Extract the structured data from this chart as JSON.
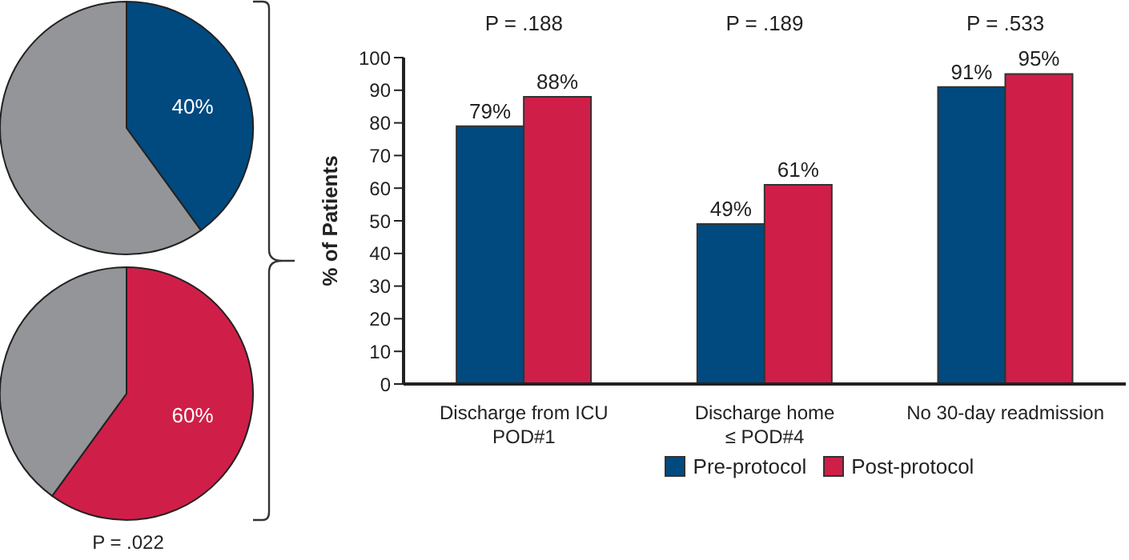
{
  "chart_data": [
    {
      "type": "pie",
      "categories": [
        null,
        null
      ],
      "values": [
        40,
        60
      ],
      "colors": [
        "#004a80",
        "#939598"
      ],
      "value_labels": [
        "40%",
        null
      ]
    },
    {
      "type": "pie",
      "categories": [
        null,
        null
      ],
      "values": [
        60,
        40
      ],
      "colors": [
        "#cf1f48",
        "#939598"
      ],
      "value_labels": [
        "60%",
        null
      ],
      "annotations": [
        "P = .022"
      ]
    },
    {
      "type": "bar",
      "categories": [
        "Discharge from ICU\nPOD#1",
        "Discharge home\n≤ POD#4",
        "No 30-day readmission"
      ],
      "series": [
        {
          "name": "Pre-protocol",
          "color": "#004a80",
          "values": [
            79,
            49,
            91
          ],
          "value_labels": [
            "79%",
            "49%",
            "91%"
          ]
        },
        {
          "name": "Post-protocol",
          "color": "#cf1f48",
          "values": [
            88,
            61,
            95
          ],
          "value_labels": [
            "88%",
            "61%",
            "95%"
          ]
        }
      ],
      "ylabel": "% of Patients",
      "ylim": [
        0,
        100
      ],
      "yticks": [
        0,
        10,
        20,
        30,
        40,
        50,
        60,
        70,
        80,
        90,
        100
      ],
      "grid": false,
      "legend": "bottom",
      "annotations": [
        "P = .188",
        "P = .189",
        "P = .533"
      ]
    }
  ]
}
